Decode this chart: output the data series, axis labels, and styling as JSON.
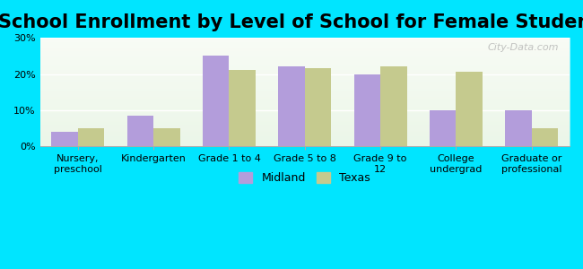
{
  "title": "School Enrollment by Level of School for Female Students",
  "categories": [
    "Nursery,\npreschool",
    "Kindergarten",
    "Grade 1 to 4",
    "Grade 5 to 8",
    "Grade 9 to\n12",
    "College\nundergrad",
    "Graduate or\nprofessional"
  ],
  "midland": [
    4,
    8.5,
    25,
    22,
    20,
    10,
    10
  ],
  "texas": [
    5,
    5,
    21,
    21.5,
    22,
    20.5,
    5
  ],
  "midland_color": "#b39ddb",
  "texas_color": "#c5ca8e",
  "background_color": "#00e5ff",
  "plot_bg_start": "#f0f8e8",
  "plot_bg_end": "#ffffff",
  "ylabel_ticks": [
    "0%",
    "10%",
    "20%",
    "30%"
  ],
  "yticks": [
    0,
    10,
    20,
    30
  ],
  "ylim": [
    0,
    30
  ],
  "legend_labels": [
    "Midland",
    "Texas"
  ],
  "title_fontsize": 15,
  "bar_width": 0.35,
  "watermark": "City-Data.com"
}
